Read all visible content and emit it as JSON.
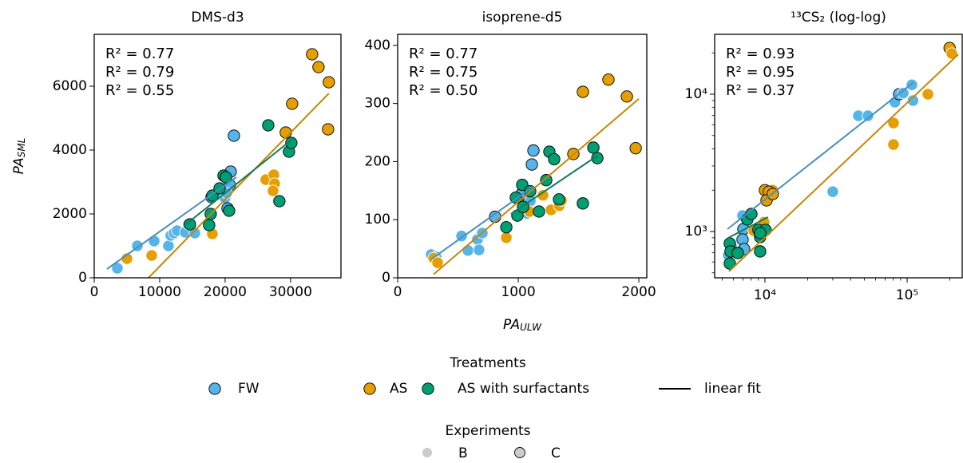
{
  "chart_data": [
    {
      "type": "scatter",
      "title": "DMS-d3",
      "xscale": "linear",
      "yscale": "linear",
      "xlim": [
        0,
        37700
      ],
      "ylim": [
        0,
        7625
      ],
      "xticks": [
        0,
        10000,
        20000,
        30000
      ],
      "yticks": [
        0,
        2000,
        4000,
        6000
      ],
      "ylabel": {
        "text": "PA",
        "sub": "SML"
      },
      "annotations": [
        {
          "text": "R² = 0.77",
          "color": "#4a8fc0"
        },
        {
          "text": "R² = 0.79",
          "color": "#c4870a"
        },
        {
          "text": "R² = 0.55",
          "color": "#15795c"
        }
      ],
      "series": [
        {
          "name": "FW",
          "color": "#56b4e9",
          "fit_color": "#4a8fc0",
          "x": [
            3540,
            6590,
            9150,
            11340,
            11700,
            12200,
            12680,
            13900,
            15370,
            14400,
            17930,
            18780,
            20000,
            20370,
            20120,
            20730,
            20850,
            21340,
            20240
          ],
          "y": [
            300,
            1000,
            1150,
            1000,
            1325,
            1400,
            1475,
            1425,
            1400,
            1675,
            2525,
            2600,
            2500,
            2175,
            2700,
            2900,
            3325,
            4450,
            2650
          ],
          "experiment": [
            "B",
            "B",
            "B",
            "B",
            "B",
            "B",
            "B",
            "B",
            "B",
            "B",
            "C",
            "B",
            "B",
            "C",
            "C",
            "C",
            "C",
            "C",
            "B"
          ],
          "fit_x": [
            1950,
            21700
          ],
          "fit_y": [
            275,
            3150
          ]
        },
        {
          "name": "AS",
          "color": "#e69f00",
          "fit_color": "#c4870a",
          "x": [
            5000,
            8780,
            18050,
            26220,
            27440,
            27560,
            27320,
            29270,
            30240,
            33290,
            34270,
            35850,
            35730
          ],
          "y": [
            600,
            700,
            1375,
            3075,
            3225,
            2950,
            2725,
            4550,
            5450,
            7000,
            6600,
            6125,
            4650
          ],
          "experiment": [
            "B",
            "B",
            "B",
            "B",
            "B",
            "B",
            "B",
            "C",
            "C",
            "C",
            "C",
            "C",
            "C"
          ],
          "fit_x": [
            8290,
            35850
          ],
          "fit_y": [
            0,
            5775
          ]
        },
        {
          "name": "AS with surfactants",
          "color": "#009e73",
          "fit_color": "#15795c",
          "x": [
            14630,
            17560,
            17800,
            18050,
            19150,
            19760,
            20120,
            20610,
            26590,
            29760,
            30120,
            28290
          ],
          "y": [
            1675,
            1650,
            2000,
            2575,
            2800,
            3200,
            3150,
            2100,
            4775,
            3950,
            4225,
            2400
          ],
          "experiment": [
            "C",
            "C",
            "C",
            "C",
            "C",
            "C",
            "C",
            "C",
            "C",
            "C",
            "C",
            "C"
          ],
          "fit_x": [
            14020,
            30490
          ],
          "fit_y": [
            1675,
            4375
          ]
        }
      ]
    },
    {
      "type": "scatter",
      "title": "isoprene-d5",
      "xscale": "linear",
      "yscale": "linear",
      "xlim": [
        0,
        2066
      ],
      "ylim": [
        0,
        419
      ],
      "xticks": [
        0,
        1000,
        2000
      ],
      "yticks": [
        0,
        100,
        200,
        300,
        400
      ],
      "xlabel": {
        "text": "PA",
        "sub": "ULW"
      },
      "annotations": [
        {
          "text": "R² = 0.77",
          "color": "#4a8fc0"
        },
        {
          "text": "R² = 0.75",
          "color": "#c4870a"
        },
        {
          "text": "R² = 0.50",
          "color": "#15795c"
        }
      ],
      "series": [
        {
          "name": "FW",
          "color": "#56b4e9",
          "fit_color": "#4a8fc0",
          "x": [
            278,
            318,
            530,
            583,
            662,
            675,
            702,
            808,
            1007,
            1026,
            1073,
            1113,
            1126,
            1100
          ],
          "y": [
            40,
            36,
            72,
            47,
            66,
            48,
            77,
            105,
            139,
            144,
            111,
            195,
            219,
            132
          ],
          "experiment": [
            "B",
            "B",
            "B",
            "B",
            "B",
            "B",
            "B",
            "C",
            "C",
            "C",
            "B",
            "C",
            "C",
            "B"
          ],
          "fit_x": [
            278,
            1126
          ],
          "fit_y": [
            32,
            157
          ]
        },
        {
          "name": "AS",
          "color": "#e69f00",
          "fit_color": "#c4870a",
          "x": [
            298,
            331,
            901,
            1093,
            1205,
            1272,
            1340,
            1358,
            1457,
            1536,
            1748,
            1901,
            1974
          ],
          "y": [
            34,
            26,
            69,
            114,
            142,
            117,
            124,
            133,
            213,
            320,
            341,
            312,
            223
          ],
          "experiment": [
            "B",
            "B",
            "B",
            "B",
            "B",
            "B",
            "B",
            "B",
            "C",
            "C",
            "C",
            "C",
            "C"
          ],
          "fit_x": [
            298,
            2000
          ],
          "fit_y": [
            6,
            308
          ]
        },
        {
          "name": "AS with surfactants",
          "color": "#009e73",
          "fit_color": "#15795c",
          "x": [
            901,
            980,
            1033,
            993,
            1040,
            1099,
            1172,
            1232,
            1258,
            1298,
            1338,
            1623,
            1656,
            1536
          ],
          "y": [
            87,
            138,
            160,
            107,
            122,
            149,
            114,
            168,
            217,
            204,
            135,
            224,
            206,
            128
          ],
          "experiment": [
            "C",
            "C",
            "C",
            "C",
            "C",
            "C",
            "C",
            "C",
            "C",
            "C",
            "C",
            "C",
            "C",
            "C"
          ],
          "fit_x": [
            940,
            1656
          ],
          "fit_y": [
            110,
            210
          ]
        }
      ]
    },
    {
      "type": "scatter",
      "title": "¹³CS₂ (log-log)",
      "xscale": "log",
      "yscale": "log",
      "xlim": [
        4430,
        244000
      ],
      "ylim": [
        460,
        27300
      ],
      "xticks": [
        {
          "value": 10000,
          "label": "10⁴"
        },
        {
          "value": 100000,
          "label": "10⁵"
        }
      ],
      "yticks": [
        {
          "value": 1000,
          "label": "10³"
        },
        {
          "value": 10000,
          "label": "10⁴"
        }
      ],
      "xminorticks": [
        5000,
        6000,
        7000,
        8000,
        9000,
        20000,
        30000,
        40000,
        50000,
        60000,
        70000,
        80000,
        90000,
        200000
      ],
      "yminorticks": [
        500,
        600,
        700,
        800,
        900,
        2000,
        3000,
        4000,
        5000,
        6000,
        7000,
        8000,
        9000,
        20000
      ],
      "annotations": [
        {
          "text": "R² = 0.93",
          "color": "#4a8fc0"
        },
        {
          "text": "R² = 0.95",
          "color": "#c4870a"
        },
        {
          "text": "R² = 0.37",
          "color": "#15795c"
        }
      ],
      "series": [
        {
          "name": "FW",
          "color": "#56b4e9",
          "fit_color": "#4a8fc0",
          "x": [
            5520,
            5810,
            6960,
            7050,
            6960,
            7140,
            30000,
            45400,
            53000,
            82100,
            87900,
            93900,
            108000,
            110000
          ],
          "y": [
            670,
            785,
            1307,
            1041,
            875,
            745,
            1950,
            6970,
            6970,
            8750,
            10000,
            10190,
            11700,
            8990
          ],
          "experiment": [
            "B",
            "B",
            "B",
            "C",
            "C",
            "C",
            "B",
            "B",
            "B",
            "B",
            "C",
            "B",
            "B",
            "B"
          ],
          "fit_x": [
            5450,
            110900
          ],
          "fit_y": [
            1041,
            12200
          ]
        },
        {
          "name": "AS",
          "color": "#e69f00",
          "fit_color": "#c4870a",
          "x": [
            8340,
            9870,
            11350,
            10000,
            10670,
            10260,
            11350,
            80200,
            80200,
            140000,
            199000,
            206000
          ],
          "y": [
            1013,
            1170,
            2000,
            2000,
            1950,
            1685,
            1875,
            6170,
            4300,
            10000,
            21700,
            19800
          ],
          "experiment": [
            "B",
            "B",
            "B",
            "C",
            "C",
            "C",
            "C",
            "B",
            "B",
            "B",
            "C",
            "B"
          ],
          "fit_x": [
            5590,
            229000
          ],
          "fit_y": [
            512,
            19500
          ]
        },
        {
          "name": "AS with surfactants",
          "color": "#009e73",
          "fit_color": "#15795c",
          "x": [
            5660,
            5730,
            5660,
            6440,
            7520,
            8030,
            9000,
            9250,
            9250,
            10100,
            9250
          ],
          "y": [
            818,
            716,
            585,
            697,
            1222,
            1342,
            1027,
            911,
            716,
            1027,
            974
          ],
          "experiment": [
            "C",
            "C",
            "C",
            "C",
            "C",
            "C",
            "C",
            "C",
            "C",
            "C",
            "C"
          ],
          "fit_x": [
            5520,
            10500
          ],
          "fit_y": [
            898,
            1273
          ]
        }
      ]
    }
  ],
  "legend": {
    "title": "Treatments",
    "entries": [
      {
        "name": "FW",
        "color": "#56b4e9"
      },
      {
        "name": "AS",
        "color": "#e69f00"
      },
      {
        "name": "AS with surfactants",
        "color": "#009e73"
      },
      {
        "name": "linear fit",
        "color": "#000000"
      }
    ],
    "experiments_title": "Experiments",
    "experiments": [
      {
        "name": "B",
        "fill": "#cccccc",
        "edge": "#ffffff"
      },
      {
        "name": "C",
        "fill": "#cccccc",
        "edge": "#000000"
      }
    ]
  }
}
